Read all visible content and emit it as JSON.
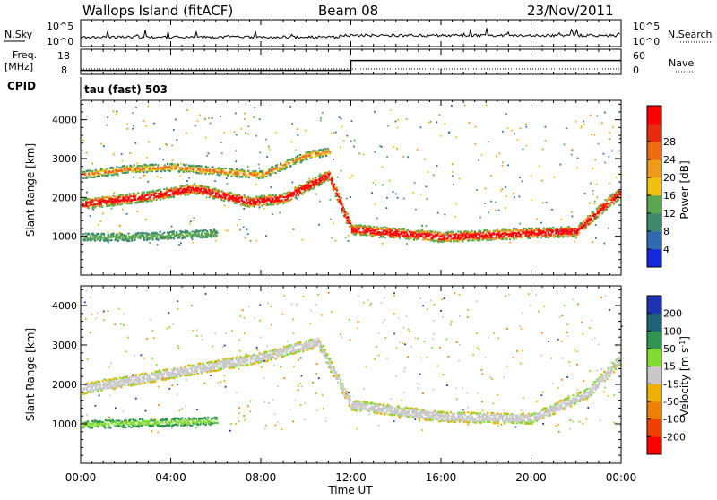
{
  "header": {
    "station": "Wallops Island (fitACF)",
    "beam": "Beam 08",
    "date": "23/Nov/2011"
  },
  "nsky_panel": {
    "left_label": "N.Sky",
    "right_label": "N.Search",
    "left_ticks": [
      "10^5",
      "10^0"
    ],
    "right_ticks": [
      "10^5",
      "10^0"
    ]
  },
  "freq_panel": {
    "left_label": "Freq.",
    "left_unit": "[MHz]",
    "right_label": "Nave",
    "left_ticks": [
      "18",
      "8"
    ],
    "right_ticks": [
      "60",
      "0"
    ]
  },
  "cpid": {
    "label": "CPID",
    "program": "tau (fast) 503"
  },
  "time_axis": {
    "label": "Time UT",
    "ticks": [
      "00:00",
      "04:00",
      "08:00",
      "12:00",
      "16:00",
      "20:00",
      "00:00"
    ],
    "hours": [
      0,
      4,
      8,
      12,
      16,
      20,
      24
    ]
  },
  "range_axis": {
    "label": "Slant Range [km]",
    "ticks": [
      "1000",
      "2000",
      "3000",
      "4000"
    ],
    "values": [
      1000,
      2000,
      3000,
      4000
    ],
    "range": [
      0,
      4500
    ]
  },
  "power_scale": {
    "label": "Power [dB]",
    "ticks": [
      "4",
      "8",
      "12",
      "16",
      "20",
      "24",
      "28"
    ],
    "colors": [
      "#1428dc",
      "#2e6bb0",
      "#3d8a6c",
      "#5aa84e",
      "#f0c010",
      "#f09a1a",
      "#f06a10",
      "#e82a10",
      "#ff0000"
    ]
  },
  "velocity_scale": {
    "label": "Velocity [m s",
    "label_exp": "-1",
    "label_end": "]",
    "ticks": [
      "200",
      "100",
      "50",
      "15",
      "-15",
      "-50",
      "-100",
      "-200"
    ],
    "colors": [
      "#1e32b4",
      "#1e6478",
      "#2e9650",
      "#80dc30",
      "#c8c8c8",
      "#f0b000",
      "#f08000",
      "#f04000",
      "#ff0000"
    ]
  },
  "chart_data": {
    "type": "heatmap",
    "x_range_hours": [
      0,
      24
    ],
    "y_range_km": [
      0,
      4500
    ],
    "power_echo_bands": [
      {
        "t": [
          0.0,
          3.0,
          5.0,
          7.5,
          9.0,
          11.0,
          12.0,
          16.0,
          20.0,
          22.0,
          23.5,
          24.0
        ],
        "km": [
          1850,
          2050,
          2250,
          1900,
          2000,
          2600,
          1200,
          1000,
          1100,
          1150,
          1950,
          2150
        ]
      },
      {
        "t": [
          0.0,
          2.0,
          4.0,
          6.0,
          8.0,
          10.0,
          11.0
        ],
        "km": [
          2600,
          2750,
          2800,
          2700,
          2600,
          3100,
          3200
        ]
      },
      {
        "t": [
          0.0,
          2.0,
          4.0,
          6.0
        ],
        "km": [
          1000,
          1000,
          1050,
          1100
        ]
      }
    ],
    "velocity_echo_bands": [
      {
        "t": [
          0.0,
          4.0,
          8.0,
          10.5,
          12.0,
          16.0,
          20.0,
          22.5,
          24.0
        ],
        "km": [
          1900,
          2300,
          2700,
          3100,
          1500,
          1200,
          1150,
          1800,
          2700
        ]
      },
      {
        "t": [
          0.0,
          3.0,
          6.0
        ],
        "km": [
          1000,
          1050,
          1100
        ]
      }
    ],
    "freq_mhz": {
      "t": [
        0.0,
        12.0,
        12.0,
        24.0
      ],
      "values": [
        10,
        10,
        15,
        15
      ]
    }
  }
}
